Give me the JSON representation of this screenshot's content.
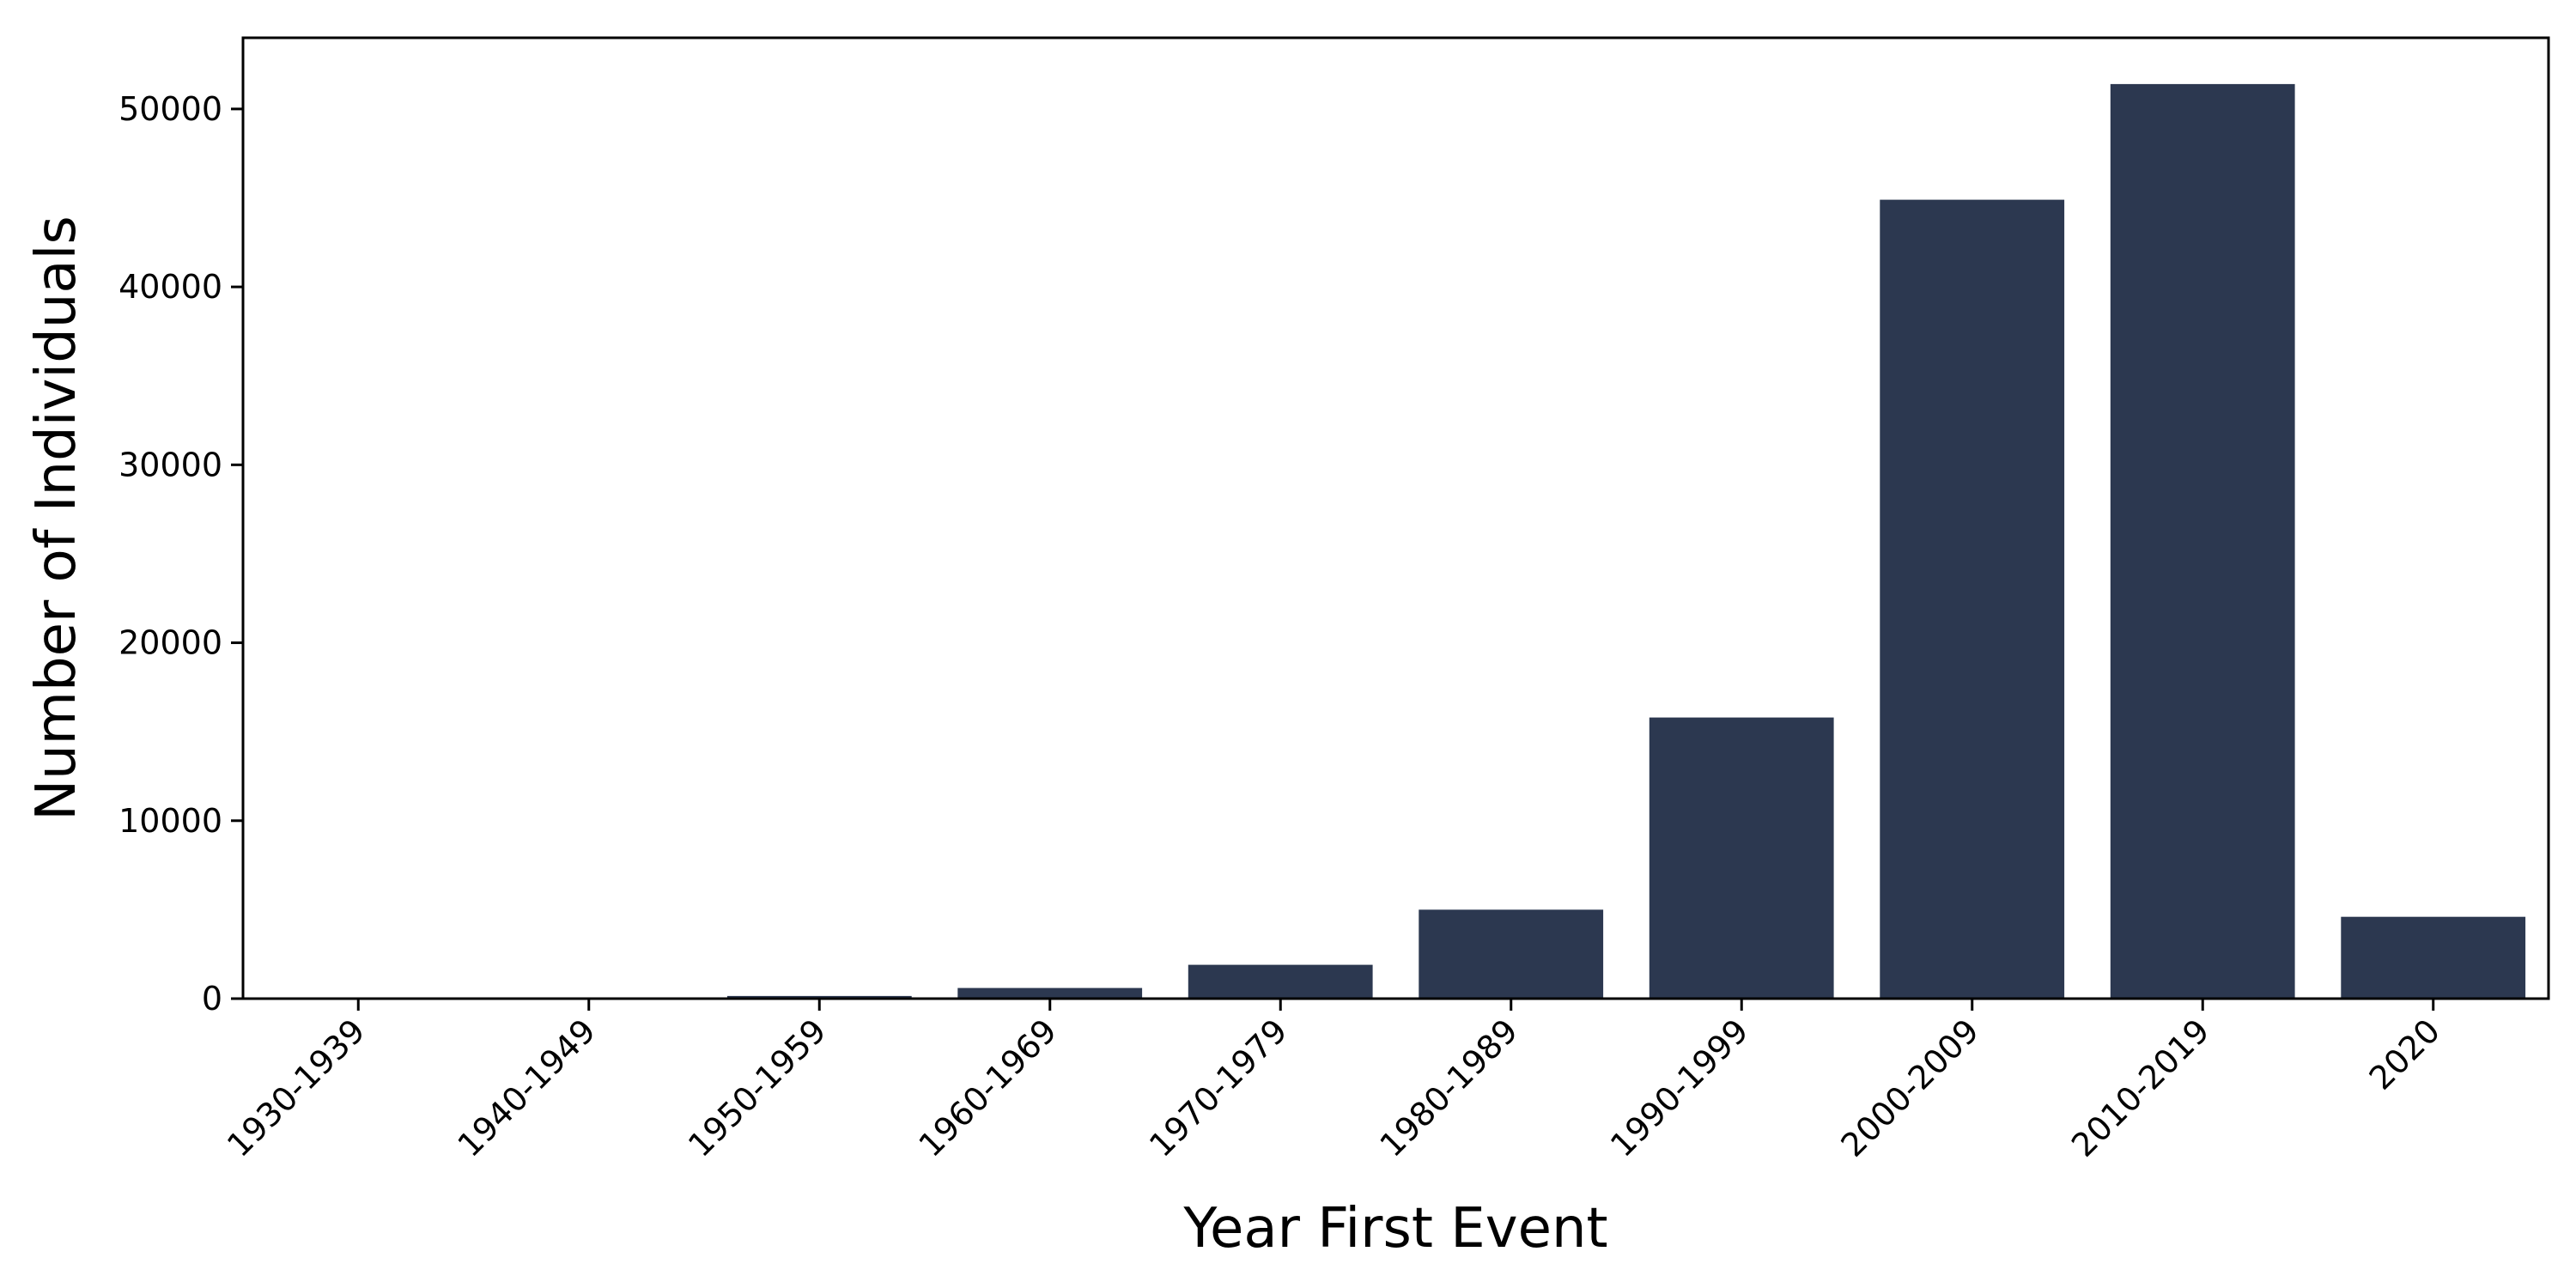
{
  "chart_data": {
    "type": "bar",
    "categories": [
      "1930-1939",
      "1940-1949",
      "1950-1959",
      "1960-1969",
      "1970-1979",
      "1980-1989",
      "1990-1999",
      "2000-2009",
      "2010-2019",
      "2020"
    ],
    "values": [
      20,
      30,
      150,
      600,
      1900,
      5000,
      15800,
      44900,
      51400,
      4600
    ],
    "title": "",
    "xlabel": "Year First Event",
    "ylabel": "Number of Individuals",
    "ylim": [
      0,
      54000
    ],
    "yticks": [
      0,
      10000,
      20000,
      30000,
      40000,
      50000
    ],
    "bar_color": "#2c3850",
    "grid": false,
    "legend": "none"
  }
}
